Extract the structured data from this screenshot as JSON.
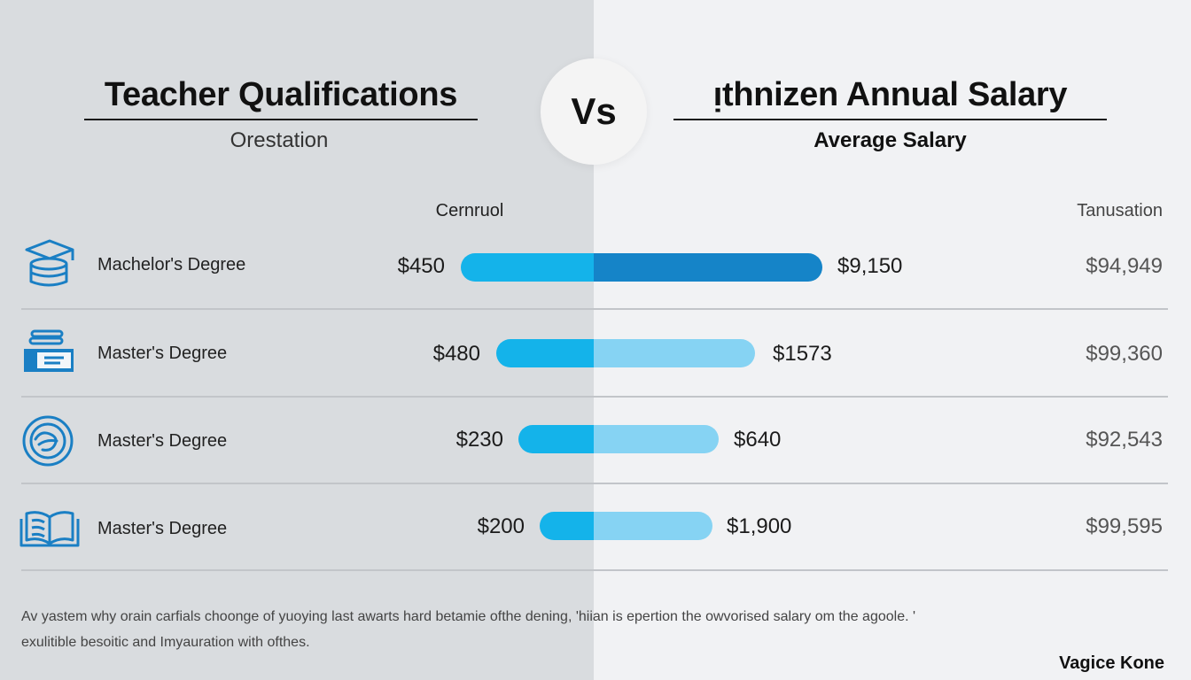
{
  "header": {
    "left_title": "Teacher Qualifications",
    "left_subtitle": "Orestation",
    "vs_label": "Vs",
    "right_title": "ᴉthnizen Annual Salary",
    "right_subtitle": "Average Salary"
  },
  "columns": {
    "mid_header": "Cernruol",
    "right_header": "Tanusation"
  },
  "rows": [
    {
      "label": "Machelor's Degree",
      "icon": "graduation-cap-stack-icon",
      "left_value": "$450",
      "mid_value": "$9,150",
      "right_value": "$94,949"
    },
    {
      "label": "Master's Degree",
      "icon": "certificate-card-icon",
      "left_value": "$480",
      "mid_value": "$1573",
      "right_value": "$99,360"
    },
    {
      "label": "Master's Degree",
      "icon": "globe-emblem-icon",
      "left_value": "$230",
      "mid_value": "$640",
      "right_value": "$92,543"
    },
    {
      "label": "Master's Degree",
      "icon": "open-book-icon",
      "left_value": "$200",
      "mid_value": "$1,900",
      "right_value": "$99,595"
    }
  ],
  "chart_data": {
    "type": "bar",
    "categories": [
      "Machelor's Degree",
      "Master's Degree",
      "Master's Degree",
      "Master's Degree"
    ],
    "series": [
      {
        "values": [
          450,
          480,
          230,
          200
        ]
      },
      {
        "values": [
          9150,
          1573,
          640,
          1900
        ]
      },
      {
        "values": [
          94949,
          99360,
          92543,
          99595
        ]
      }
    ]
  },
  "colors": {
    "bar_left_light": "#14b3ea",
    "bar_right_dark": "#1584c8",
    "bar_right_light": "#86d3f3",
    "icon_blue": "#1a7fc4",
    "panel_left_bg": "#d9dcdf",
    "panel_right_bg": "#f1f2f4"
  },
  "footnote": {
    "line1": "Av yastem why orain carfials choonge of yuoying last awarts hard betamie ofthe dening, 'hiian is epertion the owvorised salary om the agoole. '",
    "line2": "exulitible besoitic and Imyauration with ofthes.",
    "signature": "Vagice Kone"
  }
}
